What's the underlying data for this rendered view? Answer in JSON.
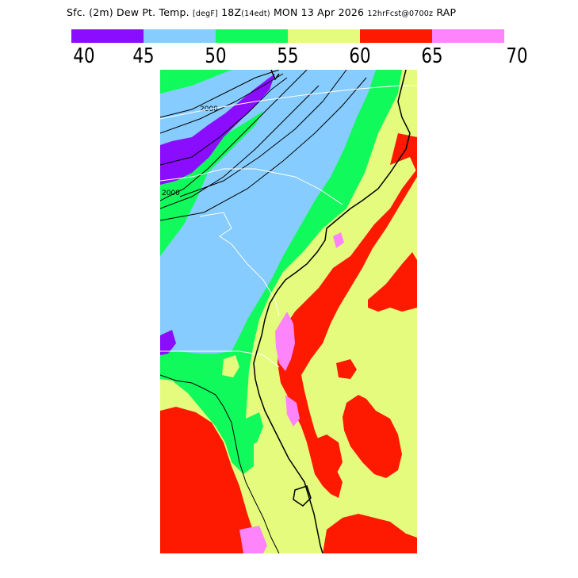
{
  "header": {
    "title_main": "Sfc. (2m) Dew Pt. Temp.",
    "title_units": "[degF]",
    "title_time": "18Z",
    "title_local": "(14edt)",
    "title_date": "MON 13 Apr 2026",
    "title_fcst": "12hrFcst@0700z",
    "title_model": "RAP"
  },
  "legend": {
    "bins": [
      {
        "label": "40-45",
        "color": "#8a0dff"
      },
      {
        "label": "45-50",
        "color": "#86ccfe"
      },
      {
        "label": "50-55",
        "color": "#11fa5c"
      },
      {
        "label": "55-60",
        "color": "#e5fb7d"
      },
      {
        "label": "60-65",
        "color": "#fd1a00"
      },
      {
        "label": "65-70",
        "color": "#fd84fb"
      }
    ],
    "ticks": [
      "40",
      "45",
      "50",
      "55",
      "60",
      "65",
      "70"
    ]
  },
  "map": {
    "region": "Southeastern United States",
    "contour_labels": [
      "2000",
      "2000"
    ],
    "colors": {
      "purple": "#8a0dff",
      "blue": "#86ccfe",
      "green": "#11fa5c",
      "yellow": "#e5fb7d",
      "red": "#fd1a00",
      "pink": "#fd84fb"
    }
  }
}
